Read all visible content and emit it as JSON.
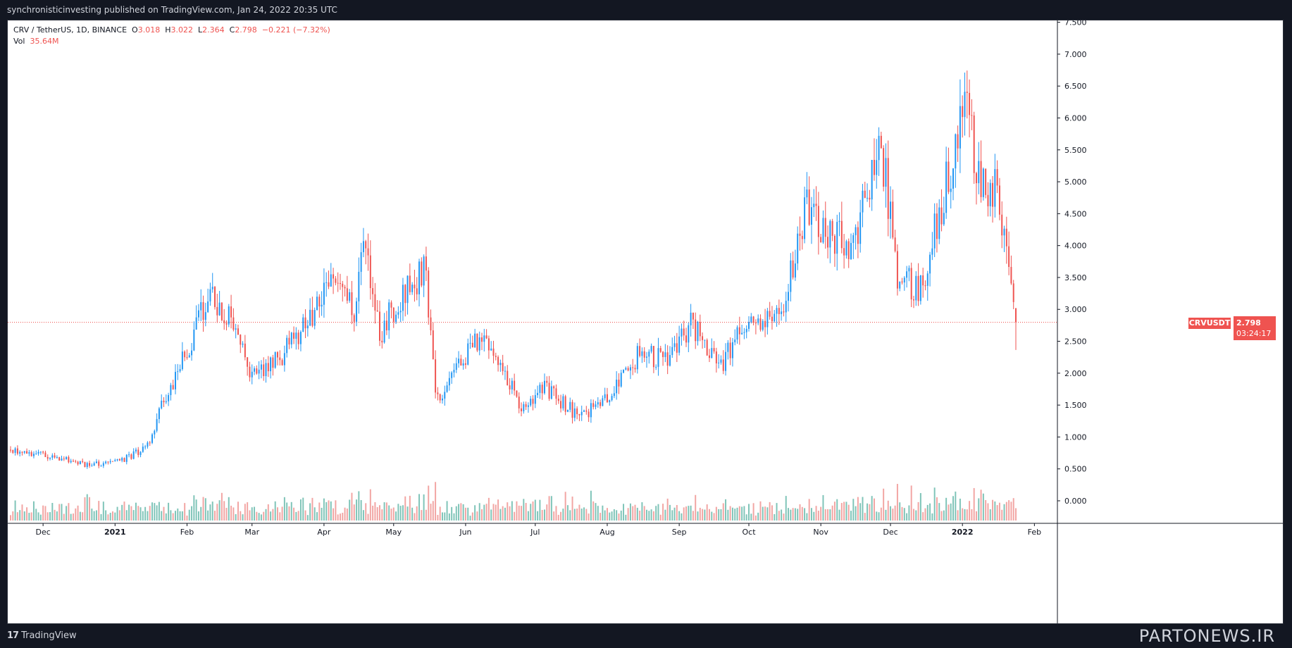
{
  "header": {
    "published_line": "synchronisticinvesting published on TradingView.com, Jan 24, 2022 20:35 UTC"
  },
  "legend": {
    "symbol_line": "CRV / TetherUS, 1D, BINANCE",
    "o_label": "O",
    "o_value": "3.018",
    "h_label": "H",
    "h_value": "3.022",
    "l_label": "L",
    "l_value": "2.364",
    "c_label": "C",
    "c_value": "2.798",
    "change": "−0.221 (−7.32%)",
    "vol_label": "Vol",
    "vol_value": "35.64M"
  },
  "price_tag": {
    "symbol": "CRVUSDT",
    "price": "2.798",
    "countdown": "03:24:17"
  },
  "footer": {
    "brand": "TradingView",
    "watermark": "PARTONEWS.IR"
  },
  "colors": {
    "up": "#2196f3",
    "down": "#ef5350",
    "vol_up": "#5fb5a6",
    "vol_down": "#ef8f8c",
    "bg": "#ffffff",
    "frame": "#131722"
  },
  "chart_data": {
    "type": "candlestick",
    "symbol": "CRV / TetherUS",
    "interval": "1D",
    "exchange": "BINANCE",
    "y_ticks": [
      "7.500",
      "7.000",
      "6.500",
      "6.000",
      "5.500",
      "5.000",
      "4.500",
      "4.000",
      "3.500",
      "3.000",
      "2.500",
      "2.000",
      "1.500",
      "1.000",
      "0.500",
      "0.000"
    ],
    "x_ticks": [
      "Dec",
      "2021",
      "Feb",
      "Mar",
      "Apr",
      "May",
      "Jun",
      "Jul",
      "Aug",
      "Sep",
      "Oct",
      "Nov",
      "Dec",
      "2022",
      "Feb"
    ],
    "ylim": [
      -0.3,
      7.5
    ],
    "last_price": 2.798,
    "anchors": [
      [
        "2020-11-17",
        0.8
      ],
      [
        "2020-12-05",
        0.7
      ],
      [
        "2020-12-20",
        0.55
      ],
      [
        "2021-01-05",
        0.65
      ],
      [
        "2021-01-15",
        0.85
      ],
      [
        "2021-01-22",
        1.6
      ],
      [
        "2021-02-02",
        2.4
      ],
      [
        "2021-02-10",
        3.3
      ],
      [
        "2021-02-20",
        2.9
      ],
      [
        "2021-03-01",
        2.0
      ],
      [
        "2021-03-12",
        2.2
      ],
      [
        "2021-03-25",
        2.8
      ],
      [
        "2021-04-03",
        3.4
      ],
      [
        "2021-04-15",
        3.0
      ],
      [
        "2021-04-18",
        4.0
      ],
      [
        "2021-04-25",
        2.6
      ],
      [
        "2021-05-05",
        3.3
      ],
      [
        "2021-05-15",
        3.6
      ],
      [
        "2021-05-19",
        1.6
      ],
      [
        "2021-05-25",
        1.8
      ],
      [
        "2021-06-05",
        2.6
      ],
      [
        "2021-06-15",
        2.2
      ],
      [
        "2021-06-25",
        1.5
      ],
      [
        "2021-07-05",
        1.8
      ],
      [
        "2021-07-20",
        1.3
      ],
      [
        "2021-08-01",
        1.6
      ],
      [
        "2021-08-15",
        2.3
      ],
      [
        "2021-08-28",
        2.2
      ],
      [
        "2021-09-06",
        2.8
      ],
      [
        "2021-09-12",
        2.4
      ],
      [
        "2021-09-20",
        2.2
      ],
      [
        "2021-10-01",
        2.8
      ],
      [
        "2021-10-15",
        2.9
      ],
      [
        "2021-10-25",
        4.6
      ],
      [
        "2021-11-05",
        4.2
      ],
      [
        "2021-11-15",
        3.9
      ],
      [
        "2021-11-26",
        5.8
      ],
      [
        "2021-11-30",
        4.7
      ],
      [
        "2021-12-04",
        3.5
      ],
      [
        "2021-12-15",
        3.3
      ],
      [
        "2021-12-20",
        4.3
      ],
      [
        "2021-12-28",
        5.3
      ],
      [
        "2022-01-03",
        6.3
      ],
      [
        "2022-01-07",
        5.2
      ],
      [
        "2022-01-15",
        4.9
      ],
      [
        "2022-01-18",
        4.2
      ],
      [
        "2022-01-24",
        2.8
      ]
    ],
    "volume_ylim": [
      0,
      7.5
    ]
  }
}
